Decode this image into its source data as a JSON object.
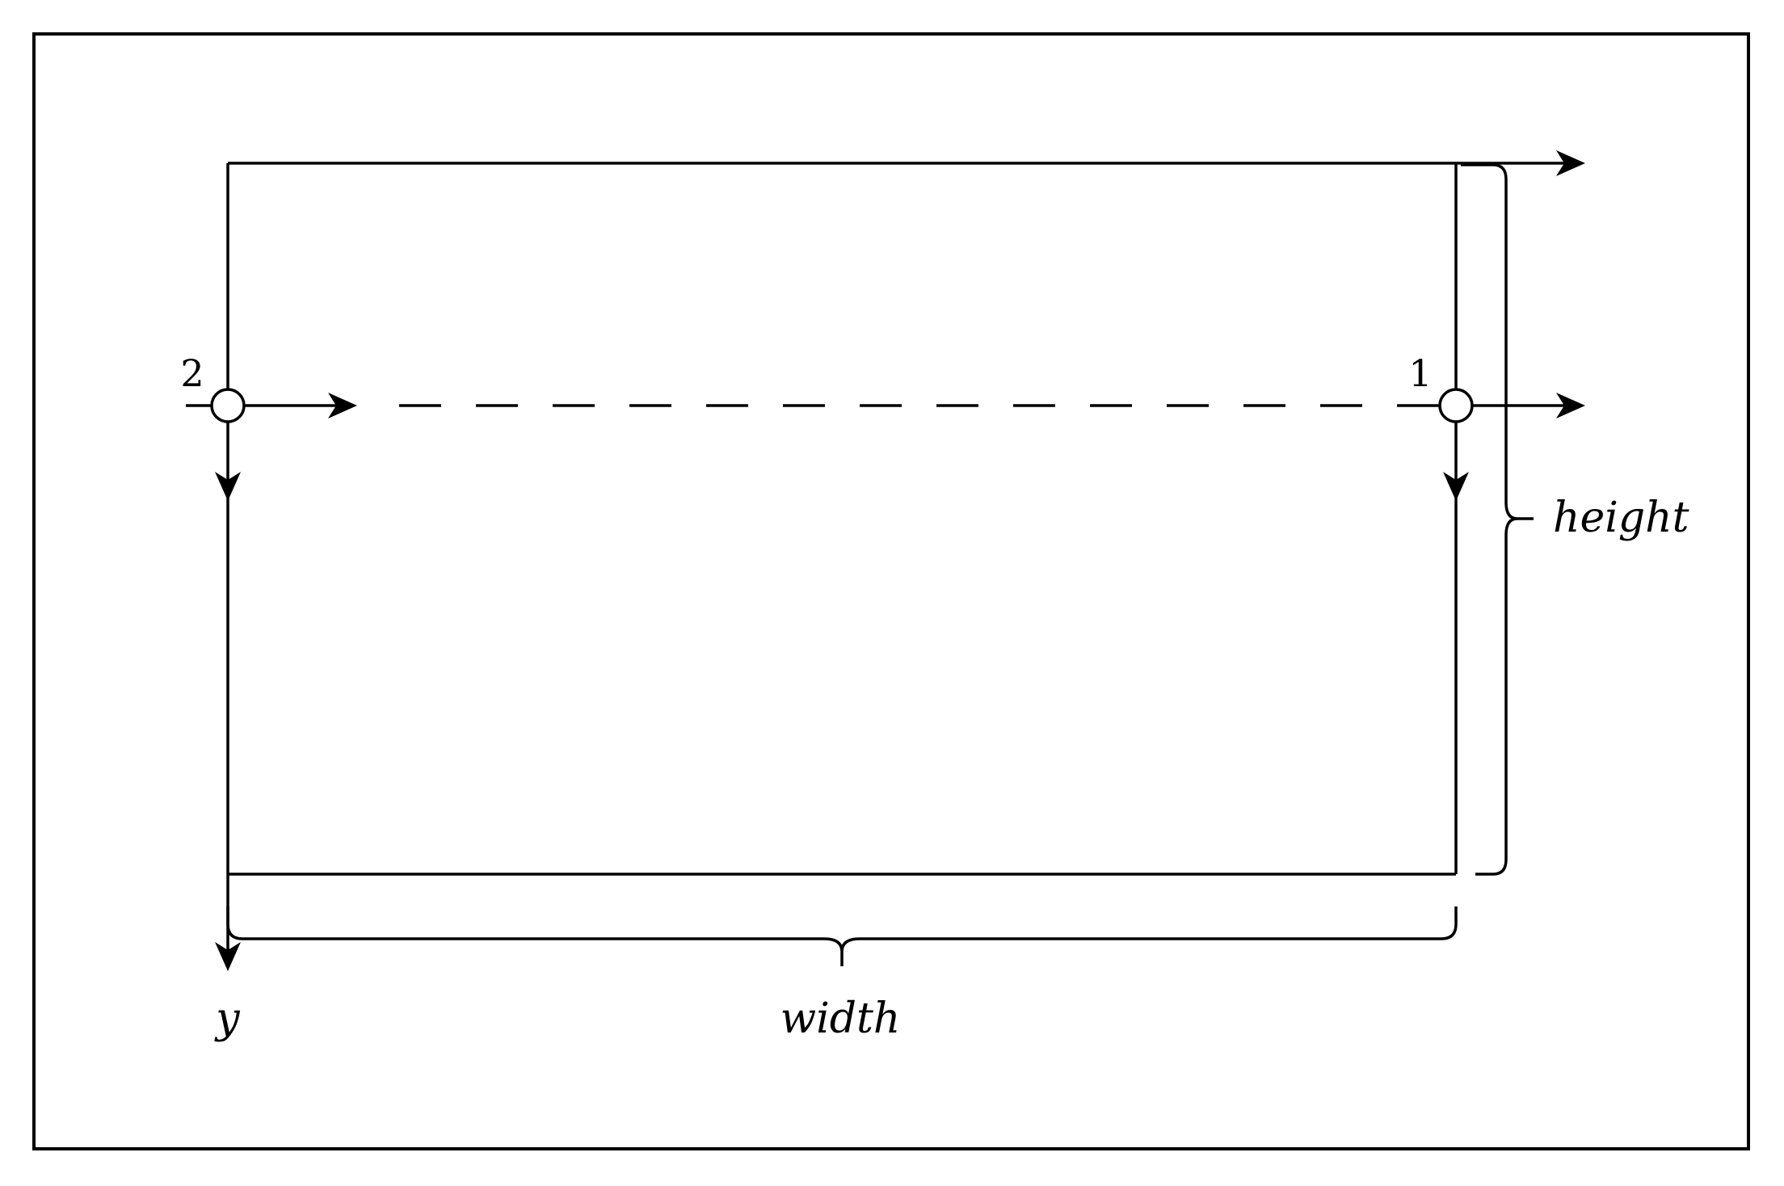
{
  "diagram": {
    "labels": {
      "node_1": "1",
      "node_2": "2",
      "height": "height",
      "width": "width",
      "y_axis": "y"
    },
    "colors": {
      "stroke": "#000000",
      "background": "#ffffff"
    }
  }
}
